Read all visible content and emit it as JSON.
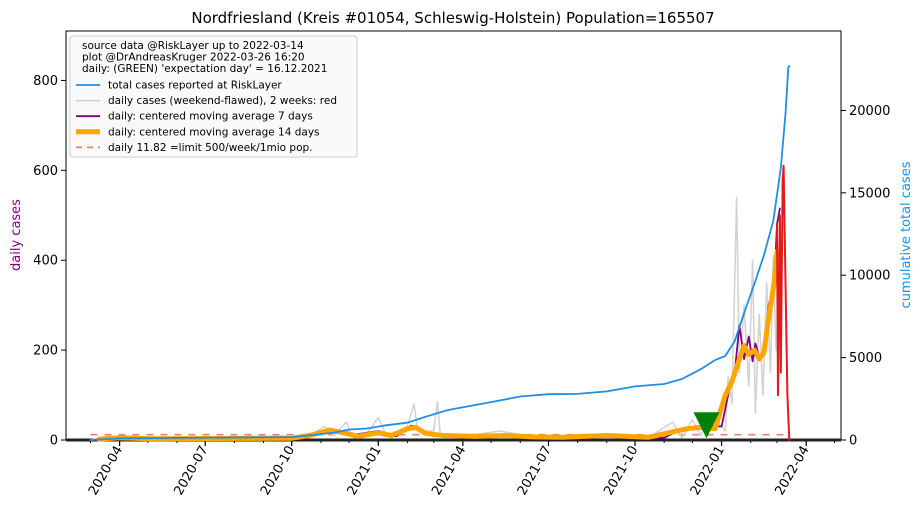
{
  "chart_data": {
    "type": "line",
    "title": "Nordfriesland (Kreis #01054, Schleswig-Holstein) Population=165507",
    "xlabel": "",
    "ylabel_left": "daily cases",
    "ylabel_right": "cumulative total cases",
    "ylim_left": [
      0,
      910
    ],
    "ylim_right": [
      0,
      24820
    ],
    "xlim": [
      "2020-02-04",
      "2022-05-08"
    ],
    "x_ticks": [
      "2020-04",
      "2020-07",
      "2020-10",
      "2021-01",
      "2021-04",
      "2021-07",
      "2021-10",
      "2022-01",
      "2022-04"
    ],
    "y_left_ticks": [
      "0",
      "200",
      "400",
      "600",
      "800"
    ],
    "y_right_ticks": [
      "0",
      "5000",
      "10000",
      "15000",
      "20000"
    ],
    "legend": {
      "header": [
        "source data @RiskLayer up to 2022-03-14",
        "plot @DrAndreasKruger 2022-03-26 16:20",
        "daily: (GREEN) 'expectation day' = 16.12.2021"
      ],
      "entries": [
        {
          "label": "total cases reported at RiskLayer",
          "color": "#1f8fe6",
          "style": "line"
        },
        {
          "label": "daily cases (weekend-flawed), 2 weeks: red",
          "color": "#d3d3d3",
          "style": "line"
        },
        {
          "label": "daily: centered moving average 7 days",
          "color": "#800080",
          "style": "line"
        },
        {
          "label": "daily: centered moving average 14 days",
          "color": "#ffa500",
          "style": "thick"
        },
        {
          "label": "daily 11.82 =limit 500/week/1mio pop.",
          "color": "#e9806e",
          "style": "dashed"
        }
      ]
    },
    "limit_line": {
      "value": 11.82,
      "start": "2020-03-01",
      "end": "2022-03-14"
    },
    "expectation_marker": {
      "date": "2021-12-16",
      "value": 35,
      "color": "#008000"
    },
    "series": [
      {
        "name": "total cases reported at RiskLayer",
        "axis": "right",
        "color": "#1f8fe6",
        "points": [
          [
            "2020-03-01",
            0
          ],
          [
            "2020-04-01",
            100
          ],
          [
            "2020-06-01",
            130
          ],
          [
            "2020-10-01",
            175
          ],
          [
            "2020-10-20",
            280
          ],
          [
            "2020-11-15",
            450
          ],
          [
            "2020-12-01",
            640
          ],
          [
            "2020-12-20",
            700
          ],
          [
            "2021-01-10",
            900
          ],
          [
            "2021-02-01",
            1050
          ],
          [
            "2021-02-20",
            1400
          ],
          [
            "2021-03-15",
            1800
          ],
          [
            "2021-04-01",
            1990
          ],
          [
            "2021-05-01",
            2300
          ],
          [
            "2021-06-01",
            2640
          ],
          [
            "2021-07-01",
            2780
          ],
          [
            "2021-08-01",
            2800
          ],
          [
            "2021-09-01",
            2950
          ],
          [
            "2021-10-01",
            3250
          ],
          [
            "2021-11-01",
            3400
          ],
          [
            "2021-11-20",
            3700
          ],
          [
            "2021-12-10",
            4300
          ],
          [
            "2021-12-25",
            4850
          ],
          [
            "2022-01-05",
            5100
          ],
          [
            "2022-01-15",
            6000
          ],
          [
            "2022-01-25",
            7700
          ],
          [
            "2022-02-05",
            9500
          ],
          [
            "2022-02-15",
            11200
          ],
          [
            "2022-02-25",
            13300
          ],
          [
            "2022-03-05",
            16500
          ],
          [
            "2022-03-10",
            19800
          ],
          [
            "2022-03-13",
            22600
          ],
          [
            "2022-03-14",
            22700
          ]
        ]
      },
      {
        "name": "daily cases (weekend-flawed)",
        "axis": "left",
        "color": "#d3d3d3",
        "points": [
          [
            "2020-03-01",
            0
          ],
          [
            "2020-03-20",
            8
          ],
          [
            "2020-04-10",
            2
          ],
          [
            "2020-10-20",
            10
          ],
          [
            "2020-11-05",
            30
          ],
          [
            "2020-11-15",
            10
          ],
          [
            "2020-11-28",
            40
          ],
          [
            "2020-12-05",
            5
          ],
          [
            "2020-12-20",
            15
          ],
          [
            "2021-01-01",
            50
          ],
          [
            "2021-01-10",
            8
          ],
          [
            "2021-02-01",
            30
          ],
          [
            "2021-02-08",
            80
          ],
          [
            "2021-02-12",
            20
          ],
          [
            "2021-03-01",
            20
          ],
          [
            "2021-03-05",
            85
          ],
          [
            "2021-03-08",
            10
          ],
          [
            "2021-04-01",
            8
          ],
          [
            "2021-05-10",
            20
          ],
          [
            "2021-06-20",
            5
          ],
          [
            "2021-09-01",
            10
          ],
          [
            "2021-10-15",
            5
          ],
          [
            "2021-11-10",
            40
          ],
          [
            "2021-11-20",
            5
          ],
          [
            "2021-12-01",
            45
          ],
          [
            "2021-12-10",
            10
          ],
          [
            "2021-12-20",
            60
          ],
          [
            "2022-01-05",
            20
          ],
          [
            "2022-01-08",
            140
          ],
          [
            "2022-01-12",
            80
          ],
          [
            "2022-01-17",
            540
          ],
          [
            "2022-01-20",
            150
          ],
          [
            "2022-01-25",
            300
          ],
          [
            "2022-01-30",
            120
          ],
          [
            "2022-02-03",
            400
          ],
          [
            "2022-02-06",
            60
          ],
          [
            "2022-02-10",
            280
          ],
          [
            "2022-02-14",
            100
          ],
          [
            "2022-02-18",
            350
          ],
          [
            "2022-02-22",
            150
          ],
          [
            "2022-02-25",
            410
          ],
          [
            "2022-02-28",
            200
          ]
        ]
      },
      {
        "name": "daily: centered moving average 7 days",
        "axis": "left",
        "color": "#800080",
        "points": [
          [
            "2020-03-10",
            5
          ],
          [
            "2020-04-01",
            6
          ],
          [
            "2020-05-01",
            2
          ],
          [
            "2020-10-15",
            5
          ],
          [
            "2020-11-10",
            25
          ],
          [
            "2020-12-01",
            10
          ],
          [
            "2021-01-01",
            20
          ],
          [
            "2021-01-20",
            8
          ],
          [
            "2021-02-05",
            32
          ],
          [
            "2021-02-25",
            12
          ],
          [
            "2021-04-01",
            8
          ],
          [
            "2021-06-01",
            8
          ],
          [
            "2021-09-15",
            10
          ],
          [
            "2021-11-01",
            5
          ],
          [
            "2021-11-20",
            25
          ],
          [
            "2021-12-10",
            32
          ],
          [
            "2022-01-01",
            30
          ],
          [
            "2022-01-10",
            120
          ],
          [
            "2022-01-15",
            150
          ],
          [
            "2022-01-20",
            255
          ],
          [
            "2022-01-25",
            180
          ],
          [
            "2022-01-30",
            230
          ],
          [
            "2022-02-03",
            175
          ],
          [
            "2022-02-06",
            215
          ],
          [
            "2022-02-10",
            185
          ],
          [
            "2022-02-15",
            200
          ],
          [
            "2022-02-20",
            300
          ],
          [
            "2022-02-26",
            340
          ],
          [
            "2022-03-01",
            480
          ],
          [
            "2022-03-04",
            515
          ]
        ]
      },
      {
        "name": "daily: centered moving average 14 days",
        "axis": "left",
        "color": "#ffa500",
        "points": [
          [
            "2020-03-10",
            2
          ],
          [
            "2020-04-01",
            5
          ],
          [
            "2020-05-01",
            3
          ],
          [
            "2020-10-01",
            4
          ],
          [
            "2020-10-20",
            10
          ],
          [
            "2020-11-10",
            22
          ],
          [
            "2020-11-28",
            15
          ],
          [
            "2020-12-10",
            8
          ],
          [
            "2021-01-01",
            16
          ],
          [
            "2021-01-15",
            10
          ],
          [
            "2021-02-01",
            25
          ],
          [
            "2021-02-10",
            28
          ],
          [
            "2021-02-20",
            15
          ],
          [
            "2021-03-10",
            10
          ],
          [
            "2021-04-15",
            8
          ],
          [
            "2021-05-15",
            10
          ],
          [
            "2021-06-15",
            7
          ],
          [
            "2021-07-15",
            6
          ],
          [
            "2021-09-01",
            10
          ],
          [
            "2021-10-15",
            6
          ],
          [
            "2021-11-10",
            18
          ],
          [
            "2021-11-25",
            25
          ],
          [
            "2021-12-10",
            28
          ],
          [
            "2021-12-25",
            25
          ],
          [
            "2022-01-05",
            100
          ],
          [
            "2022-01-12",
            130
          ],
          [
            "2022-01-20",
            180
          ],
          [
            "2022-01-25",
            210
          ],
          [
            "2022-01-30",
            190
          ],
          [
            "2022-02-05",
            200
          ],
          [
            "2022-02-10",
            180
          ],
          [
            "2022-02-15",
            195
          ],
          [
            "2022-02-20",
            270
          ],
          [
            "2022-02-26",
            350
          ],
          [
            "2022-03-01",
            420
          ],
          [
            "2022-03-04",
            410
          ]
        ]
      },
      {
        "name": "daily cases, last 2 weeks",
        "axis": "left",
        "color": "#e31a1c",
        "points": [
          [
            "2022-03-01",
            480
          ],
          [
            "2022-03-02",
            100
          ],
          [
            "2022-03-04",
            500
          ],
          [
            "2022-03-05",
            150
          ],
          [
            "2022-03-07",
            580
          ],
          [
            "2022-03-08",
            610
          ],
          [
            "2022-03-10",
            350
          ],
          [
            "2022-03-12",
            100
          ],
          [
            "2022-03-14",
            0
          ]
        ]
      }
    ]
  }
}
